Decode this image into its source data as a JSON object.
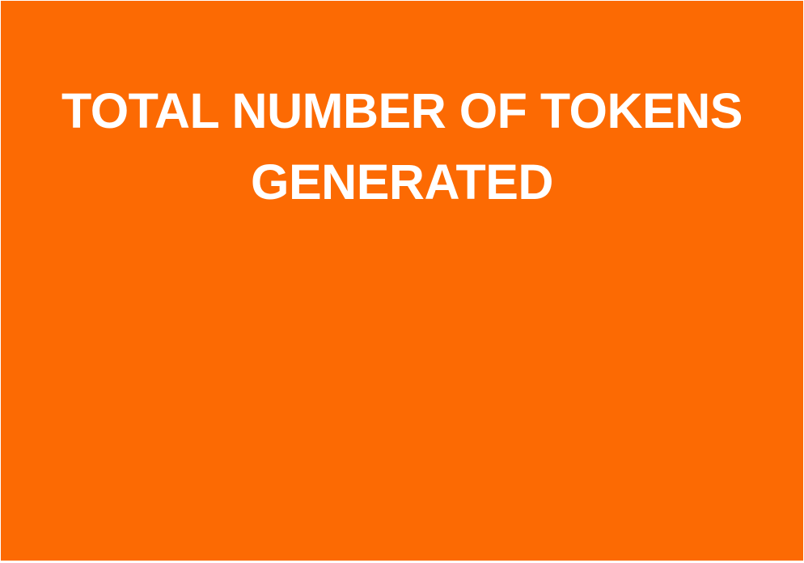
{
  "panel": {
    "background_color": "#fc6a03",
    "text_color": "#ffffff",
    "title_lines": [
      "TOTAL NUMBER OF TOKENS",
      "GENERATED"
    ]
  }
}
